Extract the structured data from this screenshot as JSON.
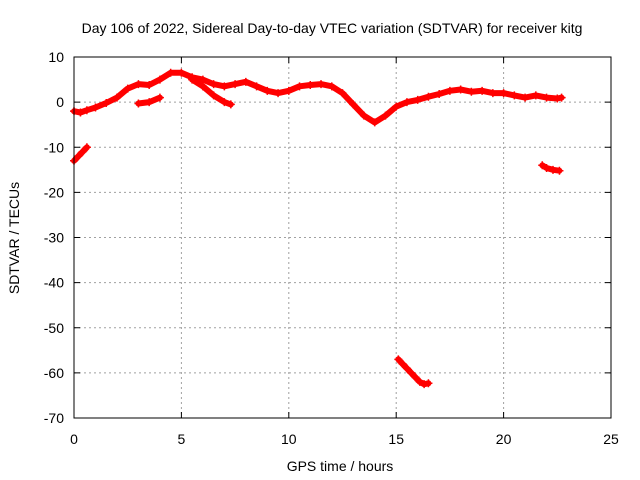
{
  "chart_data": {
    "type": "scatter",
    "title": "Day 106 of 2022, Sidereal Day-to-day VTEC variation (SDTVAR) for receiver kitg",
    "xlabel": "GPS time / hours",
    "ylabel": "SDTVAR / TECUs",
    "xlim": [
      0,
      25
    ],
    "ylim": [
      -70,
      10
    ],
    "grid": true,
    "x_ticks": [
      0,
      5,
      10,
      15,
      20,
      25
    ],
    "y_ticks": [
      10,
      0,
      -10,
      -20,
      -30,
      -40,
      -50,
      -60,
      -70
    ],
    "series": [
      {
        "name": "main arc",
        "color": "#ff0000",
        "x": [
          0.0,
          0.3,
          0.6,
          1.0,
          1.5,
          2.0,
          2.5,
          3.0,
          3.5,
          4.0,
          4.5,
          5.0,
          5.5,
          6.0,
          6.5,
          7.0,
          7.5,
          8.0,
          8.5,
          9.0,
          9.5,
          10.0,
          10.5,
          11.0,
          11.5,
          12.0,
          12.5,
          13.0,
          13.5,
          14.0,
          14.5,
          15.0,
          15.5,
          16.0,
          16.5,
          17.0,
          17.5,
          18.0,
          18.5,
          19.0,
          19.5,
          20.0,
          20.5,
          21.0,
          21.5,
          22.0,
          22.5,
          22.7
        ],
        "y": [
          -2.0,
          -2.3,
          -1.8,
          -1.2,
          -0.2,
          1.0,
          3.0,
          4.0,
          3.8,
          5.0,
          6.5,
          6.5,
          5.5,
          5.0,
          4.0,
          3.5,
          4.0,
          4.5,
          3.5,
          2.5,
          2.0,
          2.5,
          3.5,
          3.8,
          4.0,
          3.5,
          2.0,
          -0.5,
          -3.0,
          -4.5,
          -3.0,
          -1.0,
          0.0,
          0.5,
          1.2,
          1.8,
          2.5,
          2.8,
          2.3,
          2.5,
          2.0,
          2.0,
          1.5,
          1.0,
          1.5,
          1.0,
          0.8,
          1.0
        ]
      },
      {
        "name": "early low arc",
        "color": "#ff0000",
        "x": [
          0.0,
          0.2,
          0.4,
          0.6
        ],
        "y": [
          -13.0,
          -12.0,
          -11.0,
          -10.0
        ]
      },
      {
        "name": "small arc near 3.5h",
        "color": "#ff0000",
        "x": [
          3.0,
          3.5,
          4.0
        ],
        "y": [
          -0.3,
          0.0,
          1.0
        ]
      },
      {
        "name": "dipping arcs 5.5-8h",
        "color": "#ff0000",
        "x": [
          5.5,
          6.0,
          6.5,
          7.0,
          7.3
        ],
        "y": [
          5.0,
          3.5,
          1.5,
          0.0,
          -0.5
        ]
      },
      {
        "name": "late arc near 22h",
        "color": "#ff0000",
        "x": [
          21.8,
          22.0,
          22.3,
          22.6
        ],
        "y": [
          -14.0,
          -14.6,
          -15.0,
          -15.2
        ]
      },
      {
        "name": "outlier arc 15-16.5h",
        "color": "#ff0000",
        "x": [
          15.1,
          15.3,
          15.5,
          15.7,
          15.9,
          16.1,
          16.3,
          16.5
        ],
        "y": [
          -57.0,
          -58.0,
          -59.0,
          -60.0,
          -61.0,
          -62.0,
          -62.5,
          -62.3
        ]
      }
    ]
  }
}
